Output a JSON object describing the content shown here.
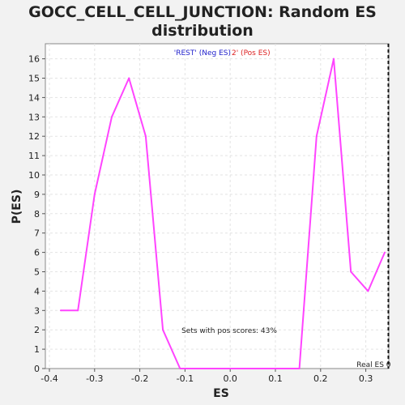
{
  "chart_data": {
    "type": "line",
    "title": "GOCC_CELL_CELL_JUNCTION: Random ES distribution",
    "title_lines": [
      "GOCC_CELL_CELL_JUNCTION: Random ES",
      "distribution"
    ],
    "xlabel": "ES",
    "ylabel": "P(ES)",
    "xlim": [
      -0.4,
      0.35
    ],
    "ylim": [
      0,
      16.8
    ],
    "x_ticks": [
      -0.4,
      -0.3,
      -0.2,
      -0.1,
      0.0,
      0.1,
      0.2,
      0.3
    ],
    "x_tick_labels": [
      "-0.4",
      "-0.3",
      "-0.2",
      "-0.1",
      "0.0",
      "0.1",
      "0.2",
      "0.3"
    ],
    "y_ticks": [
      0,
      1,
      2,
      3,
      4,
      5,
      6,
      7,
      8,
      9,
      10,
      11,
      12,
      13,
      14,
      15,
      16
    ],
    "grid": true,
    "series": [
      {
        "x": [
          -0.375,
          -0.337,
          -0.3,
          -0.262,
          -0.224,
          -0.187,
          -0.149,
          -0.111,
          -0.073,
          -0.035,
          0.002,
          0.04,
          0.078,
          0.116,
          0.153,
          0.191,
          0.229,
          0.267,
          0.305,
          0.342
        ],
        "y": [
          3,
          3,
          9,
          13,
          15,
          12,
          2,
          0,
          0,
          0,
          0,
          0,
          0,
          0,
          0,
          12,
          16,
          5,
          4,
          6
        ],
        "color": "#ff44ff"
      }
    ],
    "legend": {
      "neg_label": "'REST' (Neg ES)",
      "neg_color": "#2222cc",
      "pos_label": "2' (Pos ES)",
      "pos_color": "#dd2222",
      "placement": "top-center"
    },
    "annotations": [
      {
        "text": "Sets with pos scores: 43%"
      }
    ],
    "real_es": {
      "x": 0.35,
      "label": "Real ES 0"
    }
  }
}
